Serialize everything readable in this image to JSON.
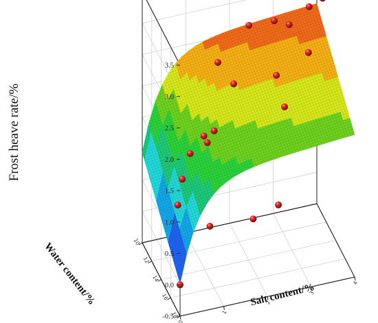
{
  "chart_data": {
    "type": "surface3d",
    "title": "",
    "zlabel": "Frost heave rate/%",
    "xlabel": "Salt content/%",
    "ylabel": "Water content/%",
    "z_ticks": [
      "-0.5",
      "0.0",
      "0.5",
      "1.0",
      "1.5",
      "2.0",
      "2.5",
      "3.0",
      "3.5"
    ],
    "zlim": [
      -0.5,
      3.5
    ],
    "x_ticks": [
      "0",
      "1",
      "2",
      "3",
      "4"
    ],
    "xlim": [
      0,
      4
    ],
    "y_ticks": [
      "10",
      "12",
      "14",
      "16",
      "18"
    ],
    "ylim": [
      10,
      18
    ],
    "grid": true,
    "surface_colormap": [
      "#1a2bd8",
      "#1f63f0",
      "#14a7e8",
      "#22d8d8",
      "#1ec87a",
      "#2bd23a",
      "#6fd21e",
      "#d7e81a",
      "#f5b014",
      "#f06a1a",
      "#e81a1a"
    ],
    "scatter_color": "#d42020",
    "scatter_points": [
      {
        "x": 0.0,
        "y": 18.0,
        "z": 0.0
      },
      {
        "x": 0.1,
        "y": 16.6,
        "z": 1.05
      },
      {
        "x": 0.3,
        "y": 15.7,
        "z": 1.3
      },
      {
        "x": 0.6,
        "y": 14.6,
        "z": 1.5
      },
      {
        "x": 1.0,
        "y": 13.8,
        "z": 1.6
      },
      {
        "x": 1.1,
        "y": 13.6,
        "z": 1.45
      },
      {
        "x": 1.3,
        "y": 13.2,
        "z": 1.55
      },
      {
        "x": 0.9,
        "y": 16.0,
        "z": 0.5
      },
      {
        "x": 2.0,
        "y": 15.0,
        "z": 0.3
      },
      {
        "x": 2.6,
        "y": 14.8,
        "z": 0.4
      },
      {
        "x": 1.6,
        "y": 11.2,
        "z": 2.3
      },
      {
        "x": 1.9,
        "y": 11.8,
        "z": 2.0
      },
      {
        "x": 2.4,
        "y": 10.4,
        "z": 2.65
      },
      {
        "x": 2.9,
        "y": 11.6,
        "z": 1.95
      },
      {
        "x": 3.0,
        "y": 12.4,
        "z": 1.55
      },
      {
        "x": 3.0,
        "y": 10.2,
        "z": 2.6
      },
      {
        "x": 3.3,
        "y": 10.6,
        "z": 2.55
      },
      {
        "x": 3.7,
        "y": 11.0,
        "z": 2.1
      },
      {
        "x": 3.8,
        "y": 10.2,
        "z": 2.7
      },
      {
        "x": 4.0,
        "y": 10.0,
        "z": 2.95
      },
      {
        "x": 4.0,
        "y": 11.2,
        "z": 2.95
      }
    ]
  }
}
